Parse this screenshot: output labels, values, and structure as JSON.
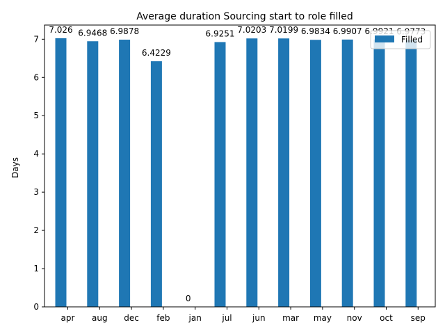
{
  "chart_data": {
    "type": "bar",
    "title": "Average duration Sourcing start to role filled",
    "xlabel": "",
    "ylabel": "Days",
    "categories": [
      "apr",
      "aug",
      "dec",
      "feb",
      "jan",
      "jul",
      "jun",
      "mar",
      "may",
      "nov",
      "oct",
      "sep"
    ],
    "series": [
      {
        "name": "Filled",
        "color": "#1f77b4",
        "values": [
          7.026,
          6.9468,
          6.9878,
          6.4229,
          0,
          6.9251,
          7.0203,
          7.0199,
          6.9834,
          6.9907,
          6.9921,
          6.9773
        ],
        "labels": [
          "7.026",
          "6.9468",
          "6.9878",
          "6.4229",
          "0",
          "6.9251",
          "7.0203",
          "7.0199",
          "6.9834",
          "6.9907",
          "6.9921",
          "6.9773"
        ]
      }
    ],
    "ylim": [
      0,
      7.37
    ],
    "yticks": [
      0,
      1,
      2,
      3,
      4,
      5,
      6,
      7
    ],
    "grid": false,
    "legend_position": "top-right"
  }
}
